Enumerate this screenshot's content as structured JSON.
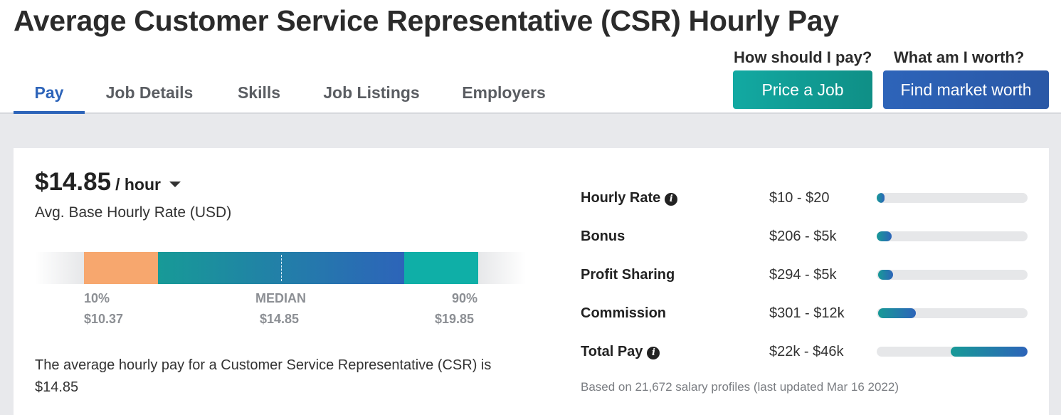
{
  "page_title": "Average Customer Service Representative (CSR) Hourly Pay",
  "tabs": [
    {
      "label": "Pay",
      "active": true
    },
    {
      "label": "Job Details",
      "active": false
    },
    {
      "label": "Skills",
      "active": false
    },
    {
      "label": "Job Listings",
      "active": false
    },
    {
      "label": "Employers",
      "active": false
    }
  ],
  "cta": {
    "price_question": "How should I pay?",
    "price_button": "Price a Job",
    "worth_question": "What am I worth?",
    "worth_button": "Find market worth"
  },
  "summary": {
    "value": "$14.85",
    "unit": "/ hour",
    "caption": "Avg. Base Hourly Rate (USD)"
  },
  "distribution": {
    "p10_label": "10%",
    "p10_value": "$10.37",
    "median_label": "MEDIAN",
    "median_value": "$14.85",
    "p90_label": "90%",
    "p90_value": "$19.85"
  },
  "description": "The average hourly pay for a Customer Service Representative (CSR) is $14.85",
  "breakdown": [
    {
      "label": "Hourly Rate",
      "info": true,
      "range": "$10 - $20",
      "fill_start": 0.0,
      "fill_end": 0.05
    },
    {
      "label": "Bonus",
      "info": false,
      "range": "$206 - $5k",
      "fill_start": 0.0,
      "fill_end": 0.1
    },
    {
      "label": "Profit Sharing",
      "info": false,
      "range": "$294 - $5k",
      "fill_start": 0.01,
      "fill_end": 0.11
    },
    {
      "label": "Commission",
      "info": false,
      "range": "$301 - $12k",
      "fill_start": 0.01,
      "fill_end": 0.26
    },
    {
      "label": "Total Pay",
      "info": true,
      "range": "$22k - $46k",
      "fill_start": 0.49,
      "fill_end": 1.0
    }
  ],
  "footnote": "Based on 21,672 salary profiles (last updated Mar 16 2022)",
  "colors": {
    "accent_blue": "#2d64b9",
    "teal": "#12a9a2",
    "orange": "#f7a76e",
    "green": "#0fafa7"
  }
}
